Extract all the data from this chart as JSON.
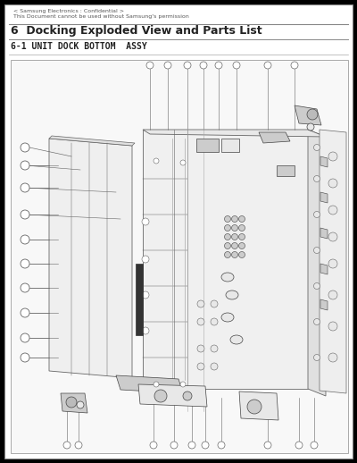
{
  "page_bg": "#ffffff",
  "outer_bg": "#000000",
  "header_line1": "< Samsung Electronics : Confidential >",
  "header_line2": "This Document cannot be used without Samsung's permission",
  "section_title": "6  Docking Exploded View and Parts List",
  "subsection_title": "6-1 UNIT DOCK BOTTOM  ASSY",
  "line_color": "#666666",
  "light_gray": "#e8e8e8",
  "mid_gray": "#cccccc",
  "dark_gray": "#444444",
  "title_fontsize": 9,
  "subtitle_fontsize": 7,
  "header_fontsize": 4.5
}
